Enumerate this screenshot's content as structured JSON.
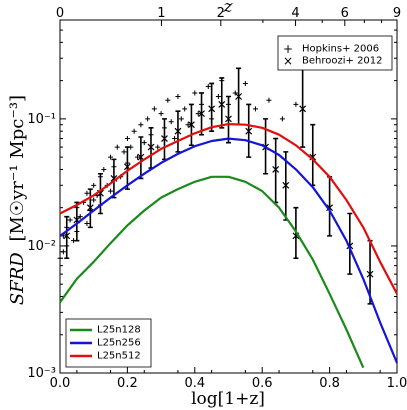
{
  "chart_data": {
    "type": "line",
    "xlabel": "log[1+z]",
    "ylabel_main": "SFRD",
    "ylabel_units": "[M☉yr⁻¹ Mpc⁻³]",
    "top_axis_label": "z",
    "xlim": [
      0.0,
      1.0
    ],
    "ylim": [
      0.001,
      0.6
    ],
    "y_scale": "log",
    "x_ticks": [
      {
        "value": 0.0,
        "label": "0.0"
      },
      {
        "value": 0.2,
        "label": "0.2"
      },
      {
        "value": 0.4,
        "label": "0.4"
      },
      {
        "value": 0.6,
        "label": "0.6"
      },
      {
        "value": 0.8,
        "label": "0.8"
      },
      {
        "value": 1.0,
        "label": "1.0"
      }
    ],
    "y_ticks": [
      {
        "value": 0.001,
        "label": "10⁻³"
      },
      {
        "value": 0.01,
        "label": "10⁻²"
      },
      {
        "value": 0.1,
        "label": "10⁻¹"
      }
    ],
    "top_ticks": [
      {
        "value": 0,
        "label": "0"
      },
      {
        "value": 1,
        "label": "1"
      },
      {
        "value": 2,
        "label": "2"
      },
      {
        "value": 4,
        "label": "4"
      },
      {
        "value": 6,
        "label": "6"
      },
      {
        "value": 9,
        "label": "9"
      }
    ],
    "series": [
      {
        "name": "L25n128",
        "color": "#1a8a1a",
        "x": [
          0.0,
          0.05,
          0.1,
          0.15,
          0.2,
          0.25,
          0.3,
          0.35,
          0.4,
          0.45,
          0.5,
          0.55,
          0.6,
          0.65,
          0.7,
          0.75,
          0.8,
          0.85,
          0.9
        ],
        "y": [
          0.0036,
          0.0055,
          0.0075,
          0.0105,
          0.0145,
          0.019,
          0.024,
          0.028,
          0.032,
          0.035,
          0.035,
          0.032,
          0.027,
          0.02,
          0.013,
          0.0078,
          0.0042,
          0.0022,
          0.0011
        ]
      },
      {
        "name": "L25n256",
        "color": "#1515d8",
        "x": [
          0.0,
          0.05,
          0.1,
          0.15,
          0.2,
          0.25,
          0.3,
          0.35,
          0.4,
          0.45,
          0.5,
          0.55,
          0.6,
          0.65,
          0.7,
          0.75,
          0.8,
          0.85,
          0.9,
          0.95,
          1.0
        ],
        "y": [
          0.012,
          0.015,
          0.019,
          0.024,
          0.03,
          0.037,
          0.045,
          0.053,
          0.061,
          0.067,
          0.07,
          0.068,
          0.062,
          0.052,
          0.04,
          0.029,
          0.019,
          0.011,
          0.0055,
          0.0025,
          0.0012
        ]
      },
      {
        "name": "L25n512",
        "color": "#e01010",
        "x": [
          0.0,
          0.05,
          0.1,
          0.15,
          0.2,
          0.25,
          0.3,
          0.35,
          0.4,
          0.45,
          0.5,
          0.55,
          0.6,
          0.65,
          0.7,
          0.75,
          0.8,
          0.85,
          0.9,
          0.95,
          1.0
        ],
        "y": [
          0.018,
          0.021,
          0.025,
          0.031,
          0.039,
          0.048,
          0.058,
          0.067,
          0.077,
          0.086,
          0.091,
          0.09,
          0.085,
          0.075,
          0.062,
          0.048,
          0.035,
          0.023,
          0.014,
          0.0075,
          0.0042
        ]
      }
    ],
    "hopkins": {
      "name": "Hopkins+ 2006",
      "x": [
        0.0,
        0.01,
        0.01,
        0.02,
        0.02,
        0.03,
        0.04,
        0.05,
        0.05,
        0.06,
        0.07,
        0.08,
        0.08,
        0.09,
        0.1,
        0.1,
        0.11,
        0.12,
        0.12,
        0.13,
        0.14,
        0.15,
        0.15,
        0.16,
        0.17,
        0.18,
        0.19,
        0.2,
        0.2,
        0.21,
        0.22,
        0.23,
        0.24,
        0.25,
        0.26,
        0.27,
        0.28,
        0.29,
        0.3,
        0.31,
        0.32,
        0.33,
        0.34,
        0.35,
        0.36,
        0.37,
        0.38,
        0.4,
        0.41,
        0.42,
        0.44,
        0.45,
        0.47,
        0.48,
        0.5,
        0.52,
        0.55,
        0.58,
        0.62,
        0.66,
        0.7
      ],
      "y": [
        0.008,
        0.012,
        0.009,
        0.014,
        0.01,
        0.016,
        0.011,
        0.02,
        0.013,
        0.017,
        0.022,
        0.015,
        0.026,
        0.019,
        0.023,
        0.03,
        0.025,
        0.035,
        0.021,
        0.04,
        0.03,
        0.05,
        0.027,
        0.042,
        0.06,
        0.035,
        0.055,
        0.045,
        0.07,
        0.06,
        0.08,
        0.05,
        0.09,
        0.065,
        0.1,
        0.075,
        0.12,
        0.06,
        0.11,
        0.085,
        0.14,
        0.095,
        0.07,
        0.15,
        0.1,
        0.12,
        0.09,
        0.16,
        0.11,
        0.13,
        0.18,
        0.1,
        0.15,
        0.2,
        0.13,
        0.16,
        0.19,
        0.12,
        0.14,
        0.1,
        0.13
      ]
    },
    "behroozi": {
      "name": "Behroozi+ 2012",
      "points": [
        {
          "x": 0.02,
          "y": 0.012,
          "lo": 0.008,
          "hi": 0.017
        },
        {
          "x": 0.05,
          "y": 0.016,
          "lo": 0.011,
          "hi": 0.022
        },
        {
          "x": 0.09,
          "y": 0.02,
          "lo": 0.014,
          "hi": 0.028
        },
        {
          "x": 0.12,
          "y": 0.026,
          "lo": 0.018,
          "hi": 0.037
        },
        {
          "x": 0.16,
          "y": 0.034,
          "lo": 0.024,
          "hi": 0.048
        },
        {
          "x": 0.2,
          "y": 0.042,
          "lo": 0.028,
          "hi": 0.06
        },
        {
          "x": 0.24,
          "y": 0.05,
          "lo": 0.034,
          "hi": 0.072
        },
        {
          "x": 0.27,
          "y": 0.06,
          "lo": 0.041,
          "hi": 0.085
        },
        {
          "x": 0.31,
          "y": 0.07,
          "lo": 0.048,
          "hi": 0.1
        },
        {
          "x": 0.35,
          "y": 0.08,
          "lo": 0.055,
          "hi": 0.115
        },
        {
          "x": 0.39,
          "y": 0.09,
          "lo": 0.062,
          "hi": 0.13
        },
        {
          "x": 0.42,
          "y": 0.11,
          "lo": 0.075,
          "hi": 0.16
        },
        {
          "x": 0.45,
          "y": 0.12,
          "lo": 0.08,
          "hi": 0.19
        },
        {
          "x": 0.48,
          "y": 0.13,
          "lo": 0.085,
          "hi": 0.21
        },
        {
          "x": 0.5,
          "y": 0.1,
          "lo": 0.065,
          "hi": 0.15
        },
        {
          "x": 0.53,
          "y": 0.15,
          "lo": 0.09,
          "hi": 0.25
        },
        {
          "x": 0.56,
          "y": 0.08,
          "lo": 0.05,
          "hi": 0.13
        },
        {
          "x": 0.61,
          "y": 0.06,
          "lo": 0.037,
          "hi": 0.1
        },
        {
          "x": 0.64,
          "y": 0.04,
          "lo": 0.022,
          "hi": 0.07
        },
        {
          "x": 0.67,
          "y": 0.03,
          "lo": 0.016,
          "hi": 0.055
        },
        {
          "x": 0.7,
          "y": 0.012,
          "lo": 0.008,
          "hi": 0.02
        },
        {
          "x": 0.72,
          "y": 0.12,
          "lo": 0.06,
          "hi": 0.3
        },
        {
          "x": 0.75,
          "y": 0.05,
          "lo": 0.03,
          "hi": 0.09
        },
        {
          "x": 0.8,
          "y": 0.02,
          "lo": 0.012,
          "hi": 0.035
        },
        {
          "x": 0.86,
          "y": 0.01,
          "lo": 0.006,
          "hi": 0.018
        },
        {
          "x": 0.92,
          "y": 0.006,
          "lo": 0.0035,
          "hi": 0.011
        }
      ]
    },
    "legend_series_position": "bottom-left",
    "legend_obs_position": "top-right"
  }
}
